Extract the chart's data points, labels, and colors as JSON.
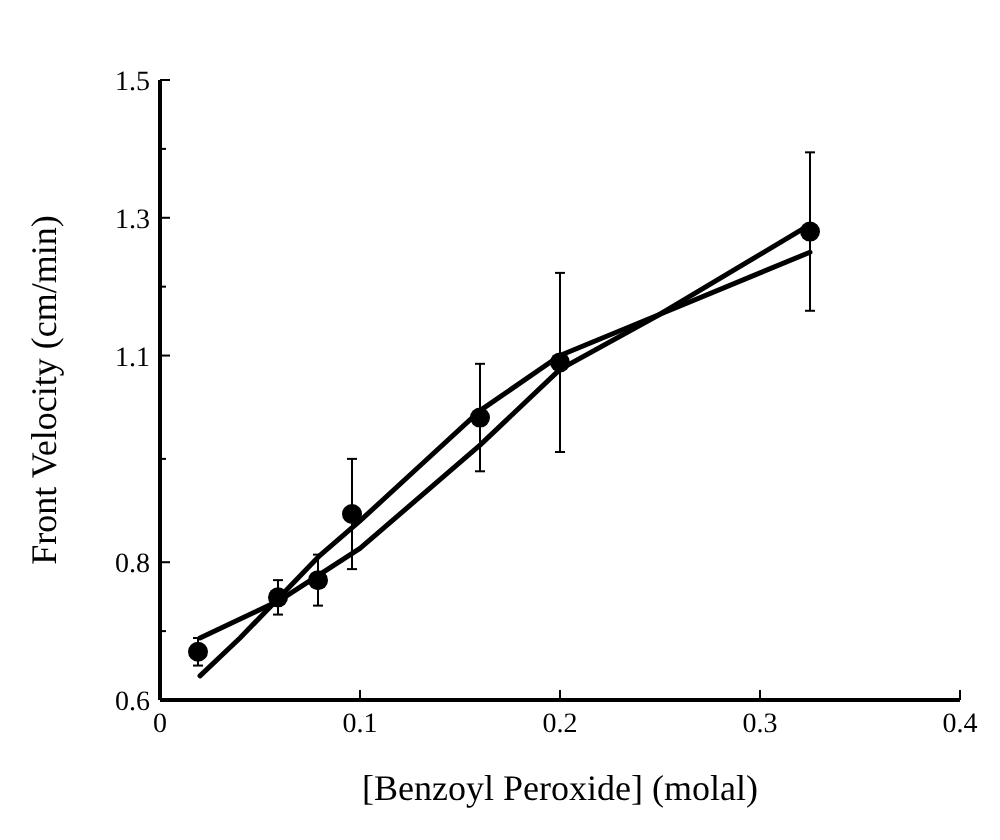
{
  "chart_data": {
    "type": "scatter",
    "xlabel": "[Benzoyl Peroxide] (molal)",
    "ylabel": "Front Velocity (cm/min)",
    "xlim": [
      0,
      0.4
    ],
    "ylim": [
      0.6,
      1.5
    ],
    "xticks": [
      0,
      0.1,
      0.2,
      0.3,
      0.4
    ],
    "yticks": [
      0.6,
      {
        "value": 0.7,
        "label": null
      },
      0.8,
      {
        "value": 0.95,
        "label": null
      },
      1.1,
      {
        "value": 1.2,
        "label": null
      },
      1.3,
      {
        "value": 1.4,
        "label": null
      },
      1.5
    ],
    "grid": false,
    "marker": "circle",
    "series": [
      {
        "color": "#000000",
        "x": [
          0.019,
          0.059,
          0.079,
          0.096,
          0.16,
          0.2,
          0.325
        ],
        "values": [
          0.67,
          0.749,
          0.774,
          0.87,
          1.01,
          1.09,
          1.28
        ],
        "errors": [
          0.02,
          0.025,
          0.037,
          0.08,
          0.078,
          0.13,
          0.115
        ]
      },
      {
        "type": "line",
        "color": "#000000",
        "marker": "none",
        "line_style": "solid",
        "x": [
          0.02,
          0.06,
          0.1,
          0.16,
          0.2,
          0.25,
          0.325
        ],
        "values": [
          0.69,
          0.745,
          0.82,
          0.97,
          1.08,
          1.16,
          1.29
        ]
      },
      {
        "type": "line",
        "color": "#000000",
        "marker": "none",
        "line_style": "solid",
        "x": [
          0.02,
          0.04,
          0.06,
          0.08,
          0.1,
          0.13,
          0.16,
          0.2,
          0.25,
          0.3,
          0.325
        ],
        "values": [
          0.635,
          0.69,
          0.75,
          0.81,
          0.86,
          0.94,
          1.02,
          1.1,
          1.16,
          1.22,
          1.25
        ]
      }
    ]
  }
}
